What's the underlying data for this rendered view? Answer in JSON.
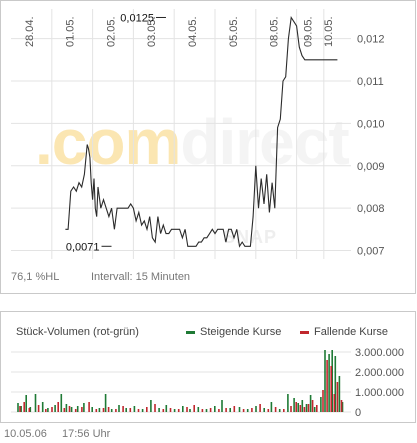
{
  "price_chart": {
    "watermark": ".comdirect",
    "watermark_snap": "SNAP",
    "footer_left": "76,1 %HL",
    "footer_interval": "Intervall: 15 Minuten"
  },
  "volume_chart": {
    "title": "Stück-Volumen (rot-grün)",
    "legend_rising": "Steigende Kurse",
    "legend_falling": "Fallende Kurse"
  },
  "footer": {
    "date": "10.05.06",
    "time": "17:56 Uhr"
  },
  "colors": {
    "price_line": "#2b2b2b",
    "grid": "#e3e3e3",
    "axis_text": "#555555",
    "rising": "#1f7a35",
    "falling": "#c0272d",
    "panel_border": "#c9c9c9"
  },
  "chart_data": [
    {
      "type": "line",
      "title": "",
      "xlabel": "",
      "ylabel": "",
      "x_tick_labels": [
        "28.04.",
        "01.05.",
        "02.05.",
        "03.05.",
        "04.05.",
        "05.05.",
        "08.05.",
        "09.05.",
        "10.05."
      ],
      "y_ticks": [
        0.007,
        0.008,
        0.009,
        0.01,
        0.011,
        0.012
      ],
      "y_tick_labels": [
        "0,007",
        "0,008",
        "0,009",
        "0,010",
        "0,011",
        "0,012"
      ],
      "ylim": [
        0.0068,
        0.0127
      ],
      "grid": true,
      "annotations": [
        {
          "text": "0,0125",
          "x": 11.1,
          "y": 0.0125
        },
        {
          "text": "0,0071",
          "x": 6.95,
          "y": 0.0071
        }
      ],
      "series": [
        {
          "x": [
            4.0,
            4.2,
            4.4,
            4.6,
            4.8,
            5.0,
            5.2,
            5.4,
            5.6,
            5.7,
            5.8,
            5.9,
            6.0,
            6.1,
            6.2,
            6.3,
            6.4,
            6.6,
            6.8,
            7.0,
            7.2,
            7.4,
            7.6,
            7.8,
            8.0,
            8.2,
            8.4,
            8.6,
            8.8,
            9.0,
            9.2,
            9.4,
            9.6,
            9.8,
            10.0,
            10.2,
            10.4,
            10.6,
            10.8,
            11.0,
            11.2,
            11.4,
            11.6,
            11.8,
            12.0,
            12.2,
            12.4,
            12.6,
            12.8,
            13.0,
            13.2,
            13.4,
            13.6,
            13.8,
            14.0,
            14.2,
            14.4,
            14.6,
            14.8,
            15.0,
            15.2,
            15.4,
            15.6,
            15.8,
            16.0,
            16.2,
            16.4,
            16.6,
            16.8,
            17.0,
            17.2,
            17.4,
            17.6,
            17.8,
            18.0,
            18.2,
            18.4,
            18.6,
            18.8,
            19.0,
            19.2,
            19.4,
            19.6,
            19.8,
            20.0,
            20.2,
            20.4,
            20.6,
            20.8,
            21.0,
            21.2,
            21.4,
            21.6,
            21.8,
            22.0,
            22.2,
            22.4,
            22.6,
            22.8,
            23.0,
            23.2,
            23.4,
            23.6,
            23.8,
            24.0
          ],
          "y": [
            0.0075,
            0.0075,
            0.0084,
            0.0085,
            0.0084,
            0.0086,
            0.0085,
            0.0088,
            0.0095,
            0.0094,
            0.0092,
            0.0086,
            0.0082,
            0.0087,
            0.008,
            0.0078,
            0.0085,
            0.008,
            0.0082,
            0.008,
            0.0078,
            0.008,
            0.0075,
            0.008,
            0.008,
            0.008,
            0.008,
            0.008,
            0.0081,
            0.008,
            0.0077,
            0.0079,
            0.0076,
            0.0077,
            0.0075,
            0.0078,
            0.0073,
            0.0072,
            0.0078,
            0.0074,
            0.0076,
            0.0074,
            0.0074,
            0.0075,
            0.0075,
            0.0075,
            0.0075,
            0.0073,
            0.0075,
            0.0071,
            0.0071,
            0.0071,
            0.0071,
            0.0072,
            0.0072,
            0.0073,
            0.0073,
            0.0074,
            0.0075,
            0.0074,
            0.0075,
            0.0075,
            0.0075,
            0.0072,
            0.0075,
            0.0075,
            0.0073,
            0.0075,
            0.0071,
            0.0072,
            0.0071,
            0.0071,
            0.0071,
            0.0078,
            0.009,
            0.008,
            0.0087,
            0.0081,
            0.0088,
            0.0079,
            0.0086,
            0.008,
            0.0099,
            0.0101,
            0.011,
            0.0111,
            0.012,
            0.0125,
            0.0124,
            0.0123,
            0.0118,
            0.0116,
            0.0115,
            0.0115,
            0.0115,
            0.0115,
            0.0115,
            0.0115,
            0.0115,
            0.0115,
            0.0115,
            0.0115,
            0.0115,
            0.0115,
            0.0115
          ]
        }
      ]
    },
    {
      "type": "bar",
      "title": "Stück-Volumen (rot-grün)",
      "y_ticks": [
        0,
        1000000,
        2000000,
        3000000
      ],
      "y_tick_labels": [
        "0",
        "1.000.000",
        "2.000.000",
        "3.000.000"
      ],
      "ylim": [
        0,
        3200000
      ],
      "legend": [
        "Steigende Kurse",
        "Fallende Kurse"
      ],
      "series": [
        {
          "name": "Steigende Kurse",
          "x": [
            16,
            19,
            24,
            28,
            33,
            40,
            45,
            52,
            58,
            63,
            68,
            74,
            80,
            88,
            95,
            101,
            107,
            114,
            121,
            129,
            137,
            145,
            153,
            160,
            168,
            176,
            183,
            191,
            199,
            207,
            214,
            222,
            231,
            239,
            247,
            255,
            262,
            270,
            278,
            284,
            288,
            292,
            296,
            300,
            304,
            310,
            314,
            318,
            321,
            324,
            328,
            331
          ],
          "values": [
            450000,
            300000,
            850000,
            250000,
            900000,
            500000,
            200000,
            350000,
            900000,
            400000,
            250000,
            300000,
            450000,
            250000,
            200000,
            900000,
            150000,
            350000,
            200000,
            300000,
            150000,
            600000,
            200000,
            350000,
            150000,
            300000,
            150000,
            250000,
            150000,
            300000,
            600000,
            200000,
            250000,
            150000,
            300000,
            200000,
            500000,
            150000,
            900000,
            700000,
            450000,
            600000,
            400000,
            850000,
            250000,
            750000,
            3100000,
            2900000,
            3100000,
            2800000,
            1800000,
            500000
          ]
        },
        {
          "name": "Fallende Kurse",
          "x": [
            18,
            22,
            27,
            36,
            43,
            49,
            55,
            61,
            66,
            72,
            78,
            85,
            92,
            99,
            104,
            111,
            118,
            125,
            133,
            141,
            149,
            157,
            164,
            172,
            180,
            187,
            195,
            203,
            211,
            218,
            226,
            235,
            243,
            251,
            259,
            266,
            274,
            281,
            286,
            290,
            294,
            298,
            302,
            306,
            312,
            316,
            320,
            323,
            326,
            330
          ],
          "values": [
            300000,
            500000,
            200000,
            350000,
            150000,
            250000,
            500000,
            200000,
            300000,
            150000,
            250000,
            500000,
            150000,
            200000,
            250000,
            150000,
            300000,
            200000,
            150000,
            250000,
            400000,
            150000,
            200000,
            150000,
            250000,
            350000,
            150000,
            200000,
            150000,
            200000,
            300000,
            150000,
            200000,
            400000,
            150000,
            250000,
            150000,
            300000,
            500000,
            350000,
            250000,
            400000,
            600000,
            350000,
            1100000,
            2600000,
            2300000,
            900000,
            1500000,
            600000
          ]
        }
      ]
    }
  ]
}
